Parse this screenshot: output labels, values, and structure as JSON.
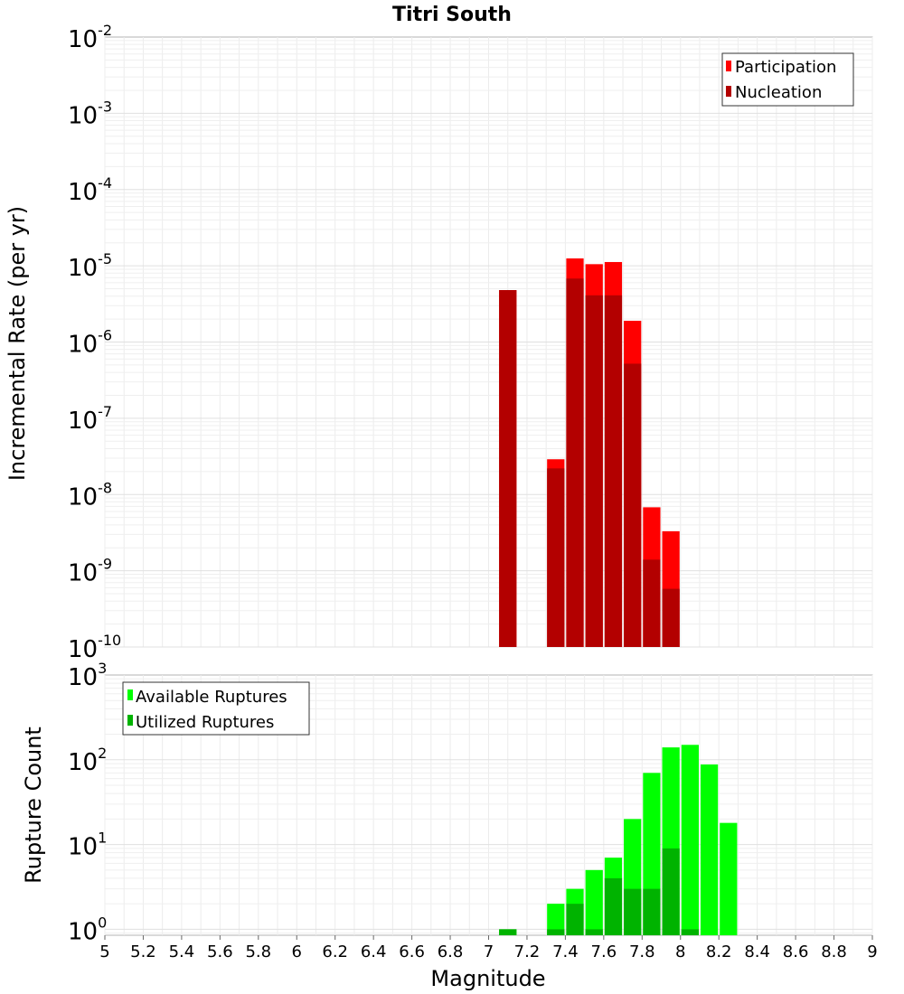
{
  "chart_data": [
    {
      "id": "rates",
      "type": "bar",
      "title": "Titri South",
      "ylabel": "Incremental Rate (per yr)",
      "xlabel": "",
      "yscale": "log",
      "ylim": [
        1e-10,
        0.01
      ],
      "xlim": [
        5,
        9
      ],
      "bin_width": 0.1,
      "legend_position": "top-right",
      "y_tick_exponents": [
        "-10",
        "-9",
        "-8",
        "-7",
        "-6",
        "-5",
        "-4",
        "-3",
        "-2"
      ],
      "y_tick_base": "10",
      "series": [
        {
          "name": "Participation",
          "color": "#ff0000",
          "x": [
            7.1,
            7.35,
            7.45,
            7.55,
            7.65,
            7.75,
            7.85,
            7.95
          ],
          "values": [
            4.8e-06,
            2.9e-08,
            1.25e-05,
            1.05e-05,
            1.12e-05,
            1.9e-06,
            6.8e-09,
            3.3e-09
          ]
        },
        {
          "name": "Nucleation",
          "color": "#b30000",
          "x": [
            7.1,
            7.35,
            7.45,
            7.55,
            7.65,
            7.75,
            7.85,
            7.95
          ],
          "values": [
            4.8e-06,
            2.2e-08,
            6.8e-06,
            4.1e-06,
            4.1e-06,
            5.2e-07,
            1.4e-09,
            5.8e-10
          ]
        }
      ]
    },
    {
      "id": "counts",
      "type": "bar",
      "title": "",
      "ylabel": "Rupture Count",
      "xlabel": "Magnitude",
      "yscale": "log",
      "ylim": [
        0.85,
        1000
      ],
      "xlim": [
        5,
        9
      ],
      "bin_width": 0.1,
      "legend_position": "top-left",
      "x_ticks": [
        "5",
        "5.2",
        "5.4",
        "5.6",
        "5.8",
        "6",
        "6.2",
        "6.4",
        "6.6",
        "6.8",
        "7",
        "7.2",
        "7.4",
        "7.6",
        "7.8",
        "8",
        "8.2",
        "8.4",
        "8.6",
        "8.8",
        "9"
      ],
      "y_tick_exponents": [
        "0",
        "1",
        "2",
        "3"
      ],
      "y_tick_base": "10",
      "series": [
        {
          "name": "Available Ruptures",
          "color": "#00ff00",
          "x": [
            7.1,
            7.35,
            7.45,
            7.55,
            7.65,
            7.75,
            7.85,
            7.95,
            8.05,
            8.15,
            8.25
          ],
          "values": [
            1,
            2,
            3,
            5,
            7,
            20,
            70,
            140,
            150,
            88,
            18
          ]
        },
        {
          "name": "Utilized Ruptures",
          "color": "#00b300",
          "x": [
            7.1,
            7.35,
            7.45,
            7.55,
            7.65,
            7.75,
            7.85,
            7.95,
            8.05
          ],
          "values": [
            1,
            1,
            2,
            1,
            4,
            3,
            3,
            9,
            1
          ]
        }
      ]
    }
  ]
}
